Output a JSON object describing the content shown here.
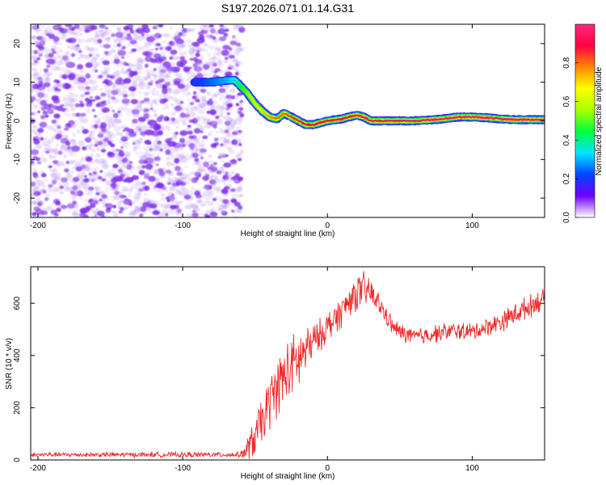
{
  "chart_data": [
    {
      "type": "heatmap",
      "title": "S197.2026.071.01.14.G31",
      "xlabel": "Height of straight line (km)",
      "ylabel": "Frequency (Hz)",
      "xlim": [
        -205,
        150
      ],
      "ylim": [
        -25,
        25
      ],
      "xticks": [
        -200,
        -100,
        0,
        100
      ],
      "yticks": [
        -20,
        -10,
        0,
        10,
        20
      ],
      "noise_region_x": [
        -205,
        -65
      ],
      "ridge": {
        "x": [
          -92,
          -80,
          -70,
          -64,
          -60,
          -55,
          -50,
          -45,
          -40,
          -35,
          -30,
          -25,
          -20,
          -15,
          -10,
          0,
          10,
          20,
          25,
          30,
          40,
          50,
          60,
          70,
          80,
          90,
          100,
          110,
          120,
          130,
          140,
          150
        ],
        "y": [
          10,
          10,
          10.5,
          10.5,
          9,
          7,
          4.5,
          2.5,
          1,
          0.5,
          2,
          1,
          0,
          -1,
          -1,
          0,
          0.5,
          1.5,
          1,
          0,
          0,
          0,
          0,
          0.2,
          0.5,
          1,
          1,
          0.8,
          0.5,
          0.3,
          0.3,
          0.3
        ],
        "amplitude": [
          0.2,
          0.25,
          0.3,
          0.35,
          0.45,
          0.55,
          0.65,
          0.7,
          0.75,
          0.8,
          0.8,
          0.85,
          0.85,
          0.9,
          0.9,
          0.92,
          0.93,
          0.95,
          0.95,
          0.95,
          0.96,
          0.96,
          0.96,
          0.97,
          0.97,
          0.98,
          0.98,
          0.97,
          0.97,
          0.96,
          0.96,
          0.96
        ]
      },
      "colorbar": {
        "label": "Normalized spectral amplitude",
        "range": [
          0,
          1
        ],
        "ticks": [
          "0.0",
          "0.2",
          "0.4",
          "0.6",
          "0.8"
        ],
        "tick_values": [
          0.0,
          0.2,
          0.4,
          0.6,
          0.8
        ],
        "colors": [
          "#ffffff",
          "#6f00ff",
          "#0044ff",
          "#00e5ff",
          "#00ff3c",
          "#aaff00",
          "#ffff00",
          "#ff8800",
          "#ff0044",
          "#ff2a7a"
        ]
      }
    },
    {
      "type": "line",
      "xlabel": "Height of straight line (km)",
      "ylabel": "SNR (10 * v/v)",
      "xlim": [
        -205,
        150
      ],
      "ylim": [
        0,
        740
      ],
      "xticks": [
        -200,
        -100,
        0,
        100
      ],
      "yticks": [
        0,
        200,
        400,
        600
      ],
      "series": [
        {
          "name": "SNR",
          "color": "#ee2a2a",
          "envelope_x": [
            -205,
            -60,
            -55,
            -50,
            -45,
            -40,
            -35,
            -30,
            -25,
            -20,
            -15,
            -10,
            -5,
            0,
            5,
            10,
            15,
            20,
            25,
            30,
            35,
            40,
            45,
            50,
            55,
            60,
            70,
            80,
            90,
            100,
            110,
            120,
            130,
            140,
            150
          ],
          "envelope_mean": [
            20,
            20,
            40,
            90,
            150,
            220,
            280,
            320,
            350,
            380,
            420,
            450,
            480,
            510,
            540,
            570,
            610,
            640,
            650,
            640,
            600,
            560,
            510,
            490,
            480,
            470,
            480,
            490,
            495,
            490,
            510,
            530,
            560,
            590,
            620
          ],
          "envelope_spread": [
            10,
            12,
            60,
            90,
            110,
            120,
            130,
            140,
            140,
            140,
            110,
            80,
            70,
            70,
            70,
            70,
            70,
            80,
            80,
            70,
            50,
            40,
            40,
            40,
            40,
            40,
            40,
            40,
            40,
            40,
            40,
            45,
            50,
            50,
            50
          ]
        }
      ]
    }
  ]
}
